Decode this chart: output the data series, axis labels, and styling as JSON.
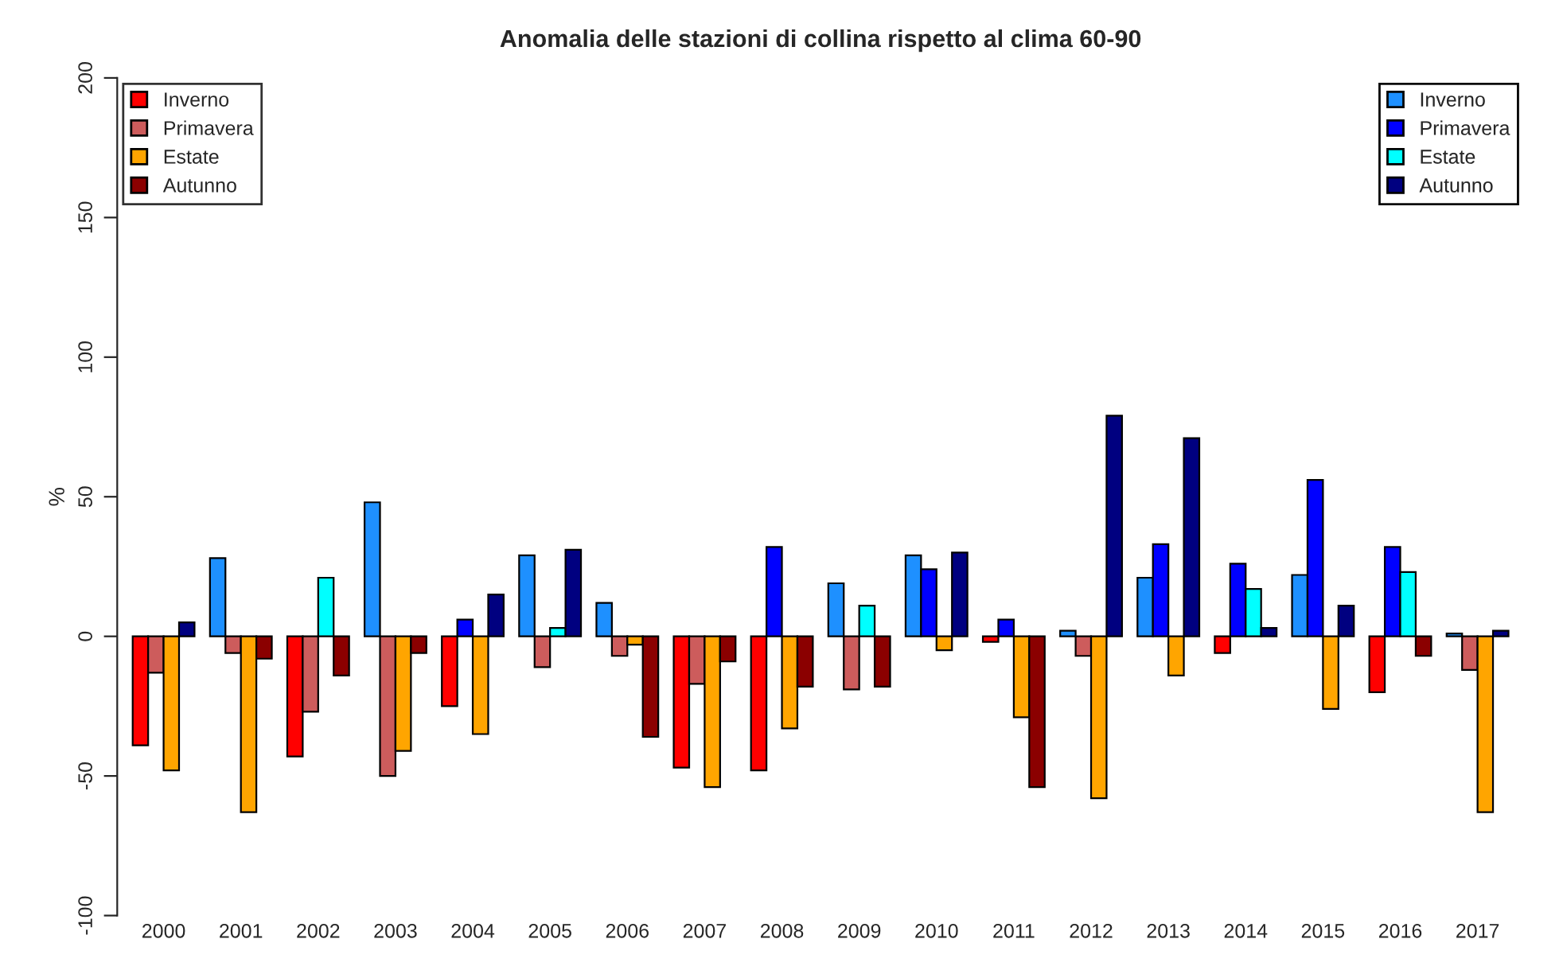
{
  "chart_data": {
    "type": "bar",
    "title": "Anomalia delle stazioni di collina rispetto al clima 60-90",
    "ylabel": "%",
    "categories": [
      "2000",
      "2001",
      "2002",
      "2003",
      "2004",
      "2005",
      "2006",
      "2007",
      "2008",
      "2009",
      "2010",
      "2011",
      "2012",
      "2013",
      "2014",
      "2015",
      "2016",
      "2017"
    ],
    "ylim": [
      -100,
      200
    ],
    "yticks": [
      -100,
      -50,
      0,
      50,
      100,
      150,
      200
    ],
    "grid": false,
    "legend": [
      "top left",
      "top right"
    ],
    "series": [
      {
        "name": "Inverno",
        "color": "#ff0000",
        "values": [
          -39,
          null,
          -43,
          null,
          -25,
          null,
          null,
          -47,
          -48,
          null,
          null,
          -2,
          null,
          null,
          -6,
          null,
          -20,
          null
        ]
      },
      {
        "name": "Primavera",
        "color": "#cd5c5c",
        "values": [
          -13,
          -6,
          -27,
          -50,
          null,
          -11,
          -7,
          -17,
          null,
          -19,
          null,
          null,
          -7,
          null,
          null,
          null,
          null,
          -12
        ]
      },
      {
        "name": "Estate",
        "color": "#ffa500",
        "values": [
          -48,
          -63,
          null,
          -41,
          -35,
          null,
          -3,
          -54,
          -33,
          null,
          -5,
          -29,
          -58,
          -14,
          null,
          -26,
          null,
          -63
        ]
      },
      {
        "name": "Autunno",
        "color": "#8b0000",
        "values": [
          null,
          -8,
          -14,
          -6,
          null,
          null,
          -36,
          -9,
          -18,
          -18,
          null,
          -54,
          null,
          null,
          null,
          null,
          -7,
          null
        ]
      },
      {
        "name": "Inverno",
        "color": "#1e90ff",
        "values": [
          null,
          28,
          null,
          48,
          null,
          29,
          12,
          null,
          null,
          19,
          29,
          null,
          2,
          21,
          null,
          22,
          null,
          1
        ]
      },
      {
        "name": "Primavera",
        "color": "#0000ff",
        "values": [
          null,
          null,
          null,
          null,
          6,
          null,
          null,
          null,
          32,
          null,
          24,
          6,
          null,
          33,
          26,
          56,
          32,
          null
        ]
      },
      {
        "name": "Estate",
        "color": "#00ffff",
        "values": [
          null,
          null,
          21,
          null,
          null,
          3,
          null,
          null,
          null,
          11,
          null,
          null,
          null,
          null,
          17,
          null,
          23,
          null
        ]
      },
      {
        "name": "Autunno",
        "color": "#000080",
        "values": [
          5,
          null,
          null,
          null,
          15,
          31,
          null,
          null,
          null,
          null,
          30,
          null,
          79,
          71,
          3,
          11,
          null,
          2
        ]
      }
    ]
  }
}
